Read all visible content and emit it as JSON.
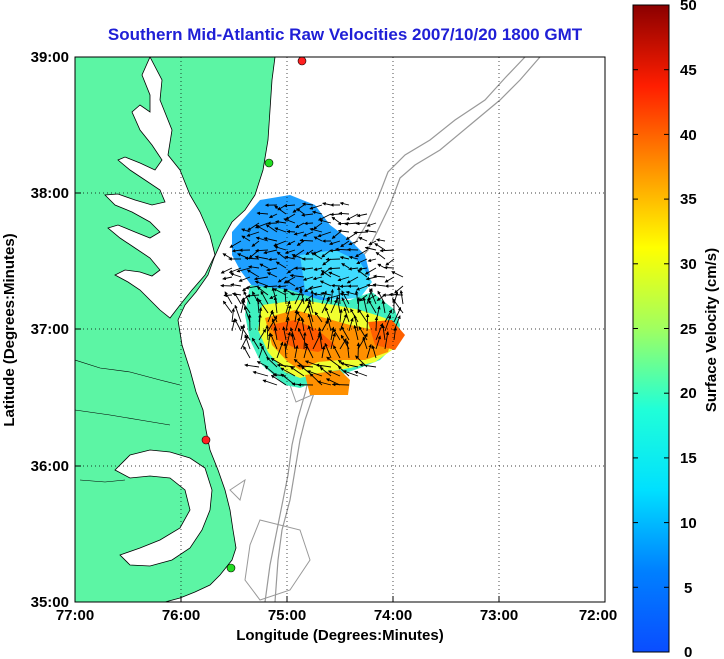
{
  "title": "Southern Mid-Atlantic Raw Velocities 2007/10/20 1800 GMT",
  "xlabel": "Longitude (Degrees:Minutes)",
  "ylabel": "Latitude (Degrees:Minutes)",
  "colorbar_label": "Surface Velocity (cm/s)",
  "x_ticks": [
    "77:00",
    "76:00",
    "75:00",
    "74:00",
    "73:00",
    "72:00"
  ],
  "y_ticks": [
    "39:00",
    "38:00",
    "37:00",
    "36:00",
    "35:00"
  ],
  "colorbar_ticks": [
    "50",
    "45",
    "40",
    "35",
    "30",
    "25",
    "20",
    "15",
    "10",
    "5",
    "0"
  ],
  "colors": {
    "land": "#5cf5a4",
    "water": "#ffffff",
    "coast": "#000000",
    "bathymetry": "#999999",
    "grid": "#000000",
    "title": "#1f1fd6",
    "site_red": "#ff2020",
    "site_green": "#22dd22"
  },
  "chart_data": {
    "type": "map",
    "xlim": [
      -77.0,
      -72.0
    ],
    "ylim": [
      35.0,
      39.0
    ],
    "colorbar_range": [
      0,
      50
    ],
    "colorscale": "jet",
    "grid": true,
    "stations": [
      {
        "lon": -74.85,
        "lat": 38.97,
        "color": "red"
      },
      {
        "lon": -75.15,
        "lat": 38.22,
        "color": "green"
      },
      {
        "lon": -75.75,
        "lat": 36.18,
        "color": "red"
      },
      {
        "lon": -75.48,
        "lat": 35.25,
        "color": "green"
      }
    ]
  }
}
